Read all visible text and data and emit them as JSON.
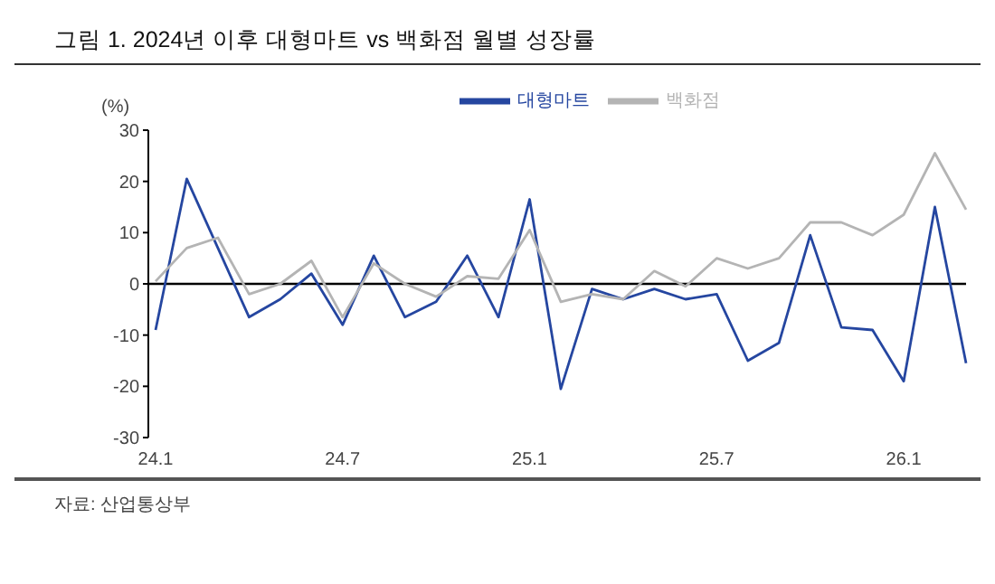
{
  "chart_data": {
    "type": "line",
    "title": "그림 1. 2024년 이후 대형마트 vs 백화점 월별 성장률",
    "ylabel": "(%)",
    "annotations": [
      "자료: 산업통상부"
    ],
    "categories": [
      "24.1",
      null,
      null,
      null,
      null,
      null,
      "24.7",
      null,
      null,
      null,
      null,
      null,
      "25.1",
      null,
      null,
      null,
      null,
      null,
      "25.7",
      null,
      null,
      null,
      null,
      null,
      "26.1",
      null,
      null
    ],
    "series": [
      {
        "name": "대형마트",
        "color": "#2546a0",
        "values": [
          -9,
          20.5,
          7,
          -6.5,
          -3,
          2,
          -8,
          5.5,
          -6.5,
          -3.5,
          5.5,
          -6.5,
          16.5,
          -20.5,
          -1,
          -3,
          -1,
          -3,
          -2,
          -15,
          -11.5,
          9.5,
          -8.5,
          -9,
          -19,
          15,
          -15.5
        ]
      },
      {
        "name": "백화점",
        "color": "#b4b4b4",
        "values": [
          0.5,
          7,
          9,
          -2,
          0,
          4.5,
          -6.5,
          4,
          0,
          -2.5,
          1.5,
          1,
          10.5,
          -3.5,
          -2,
          -3,
          2.5,
          -0.5,
          5,
          3,
          5,
          12,
          12,
          9.5,
          13.5,
          25.5,
          14.5
        ]
      }
    ],
    "ylim": [
      -30,
      30
    ],
    "yticks": [
      -30,
      -20,
      -10,
      0,
      10,
      20,
      30
    ],
    "ref_lines": [
      {
        "axis": "y",
        "value": 0,
        "color": "#000000"
      }
    ],
    "grid": false,
    "legend": "top",
    "marker": "none",
    "line_style": "solid"
  }
}
